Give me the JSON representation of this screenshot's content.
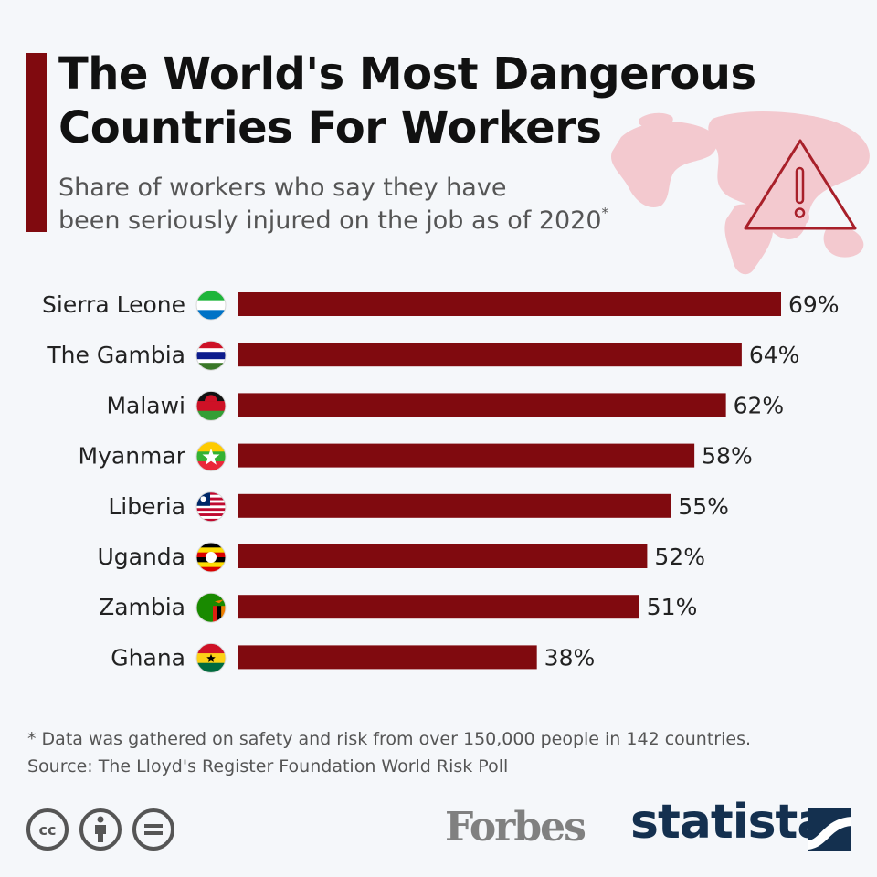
{
  "header": {
    "title_line1": "The World's Most Dangerous",
    "title_line2": "Countries For Workers",
    "subtitle_line1": "Share of workers who say they have",
    "subtitle_line2": "been seriously injured on the job as of 2020",
    "subtitle_marker": "*"
  },
  "colors": {
    "bar": "#800a0f",
    "accent": "#800a0f",
    "map": "#f3c9cf",
    "warning": "#a8202a"
  },
  "chart_data": {
    "type": "bar",
    "orientation": "horizontal",
    "title": "The World's Most Dangerous Countries For Workers",
    "subtitle": "Share of workers who say they have been seriously injured on the job as of 2020*",
    "xlabel": "",
    "ylabel": "",
    "unit": "%",
    "xlim": [
      0,
      69
    ],
    "grid": false,
    "categories": [
      "Sierra Leone",
      "The Gambia",
      "Malawi",
      "Myanmar",
      "Liberia",
      "Uganda",
      "Zambia",
      "Ghana"
    ],
    "values": [
      69,
      64,
      62,
      58,
      55,
      52,
      51,
      38
    ],
    "data_labels": [
      "69%",
      "64%",
      "62%",
      "58%",
      "55%",
      "52%",
      "51%",
      "38%"
    ],
    "flag_icons": [
      "sierra-leone-flag-icon",
      "gambia-flag-icon",
      "malawi-flag-icon",
      "myanmar-flag-icon",
      "liberia-flag-icon",
      "uganda-flag-icon",
      "zambia-flag-icon",
      "ghana-flag-icon"
    ]
  },
  "footer": {
    "note": "* Data was gathered on safety and risk from over 150,000 people in 142 countries.",
    "source": "Source: The Lloyd's Register Foundation World Risk Poll",
    "forbes": "Forbes",
    "statista": "statista",
    "icons": [
      "cc-icon",
      "attribution-icon",
      "no-derivatives-icon",
      "statista-logo-icon",
      "warning-icon",
      "world-map-icon"
    ]
  }
}
